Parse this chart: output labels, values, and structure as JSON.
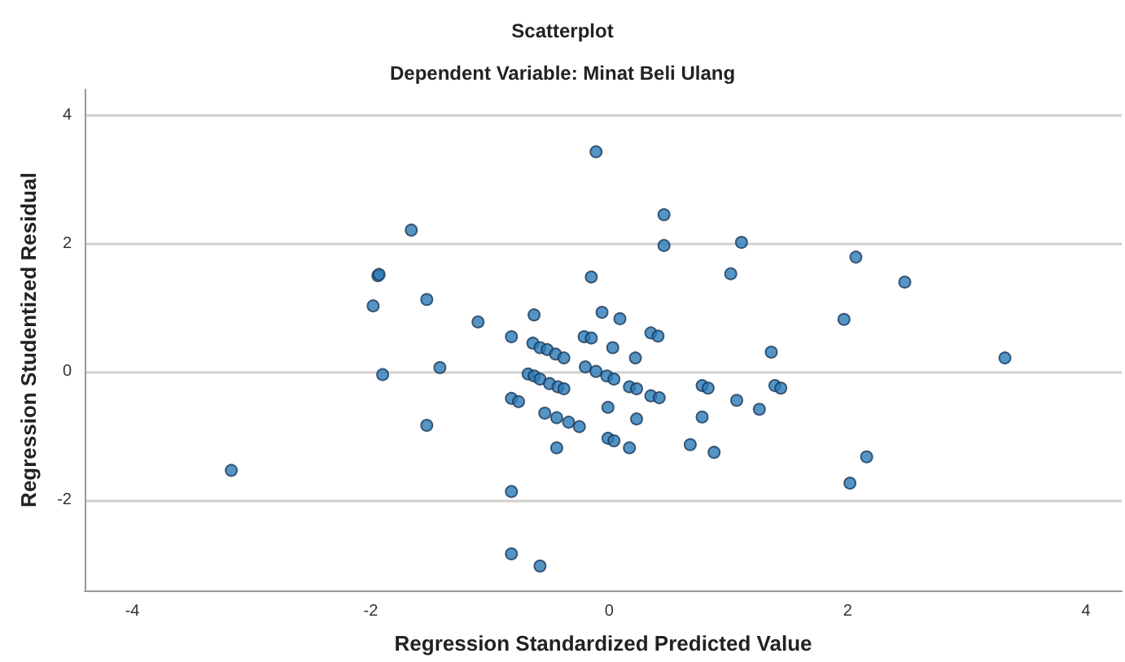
{
  "chart_data": {
    "type": "scatter",
    "title": "Scatterplot",
    "subtitle": "Dependent Variable: Minat Beli Ulang",
    "xlabel": "Regression Standardized Predicted Value",
    "ylabel": "Regression Studentized Residual",
    "xlim": [
      -4.4,
      4.3
    ],
    "xticks": [
      -4,
      -2,
      0,
      2,
      4
    ],
    "ylim": [
      -3.4,
      4.4
    ],
    "yticks": [
      -2,
      0,
      2,
      4
    ],
    "grid": "y",
    "marker": "circle",
    "series": [
      {
        "color": "#2a7ab8",
        "x": [
          -3.17,
          -1.66,
          -1.94,
          -1.93,
          -1.98,
          -1.53,
          -1.9,
          -1.42,
          -1.53,
          -1.1,
          -0.11,
          0.46,
          0.46,
          1.11,
          1.02,
          -0.15,
          2.07,
          2.48,
          1.97,
          3.32,
          -0.63,
          -0.82,
          -0.06,
          0.09,
          -0.21,
          -0.15,
          0.35,
          0.41,
          0.03,
          0.22,
          -0.64,
          -0.58,
          -0.52,
          -0.45,
          -0.38,
          1.36,
          -0.2,
          -0.11,
          -0.02,
          0.04,
          -0.68,
          -0.63,
          -0.58,
          -0.5,
          -0.43,
          -0.38,
          0.17,
          0.23,
          0.35,
          0.42,
          0.78,
          0.83,
          1.39,
          1.44,
          -0.82,
          -0.76,
          1.07,
          1.26,
          -0.54,
          -0.44,
          -0.34,
          -0.25,
          -0.01,
          0.23,
          0.78,
          -0.01,
          0.04,
          -0.44,
          0.17,
          0.68,
          0.88,
          2.16,
          2.02,
          -0.82,
          -0.82,
          -0.58
        ],
        "values": [
          -1.53,
          2.21,
          1.5,
          1.52,
          1.03,
          1.13,
          -0.04,
          0.07,
          -0.83,
          0.78,
          3.43,
          2.45,
          1.97,
          2.02,
          1.53,
          1.48,
          1.79,
          1.4,
          0.82,
          0.22,
          0.89,
          0.55,
          0.93,
          0.83,
          0.55,
          0.53,
          0.61,
          0.56,
          0.38,
          0.22,
          0.45,
          0.38,
          0.35,
          0.28,
          0.22,
          0.31,
          0.08,
          0.01,
          -0.06,
          -0.11,
          -0.03,
          -0.06,
          -0.11,
          -0.18,
          -0.23,
          -0.26,
          -0.23,
          -0.26,
          -0.37,
          -0.4,
          -0.21,
          -0.25,
          -0.21,
          -0.25,
          -0.41,
          -0.46,
          -0.44,
          -0.58,
          -0.64,
          -0.71,
          -0.78,
          -0.85,
          -0.55,
          -0.73,
          -0.7,
          -1.03,
          -1.07,
          -1.18,
          -1.18,
          -1.13,
          -1.25,
          -1.32,
          -1.73,
          -1.86,
          -2.83,
          -3.02
        ]
      }
    ]
  }
}
